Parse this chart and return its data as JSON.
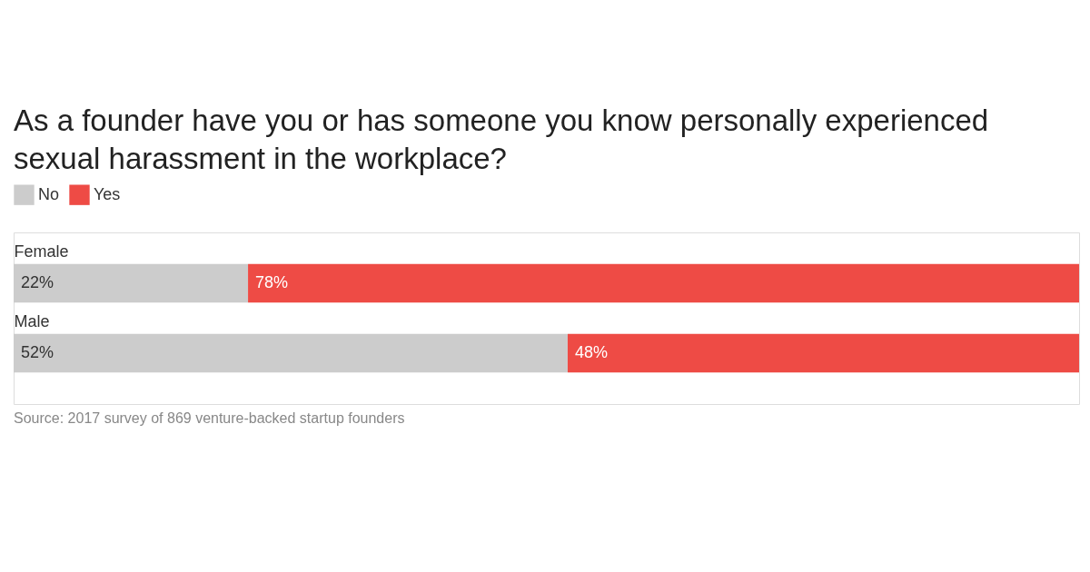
{
  "chart_data": {
    "type": "bar",
    "orientation": "horizontal",
    "stacked": true,
    "title": "As a founder have you or has someone you know personally experienced sexual harassment in the workplace?",
    "categories": [
      "Female",
      "Male"
    ],
    "series": [
      {
        "name": "No",
        "color": "#cccccc",
        "values": [
          22,
          52
        ],
        "value_labels": [
          "22%",
          "52%"
        ]
      },
      {
        "name": "Yes",
        "color": "#ee4b45",
        "values": [
          78,
          48
        ],
        "value_labels": [
          "78%",
          "48%"
        ]
      }
    ],
    "legend": "top left",
    "annotations": [
      "Source: 2017 survey of 869 venture-backed startup founders"
    ]
  }
}
